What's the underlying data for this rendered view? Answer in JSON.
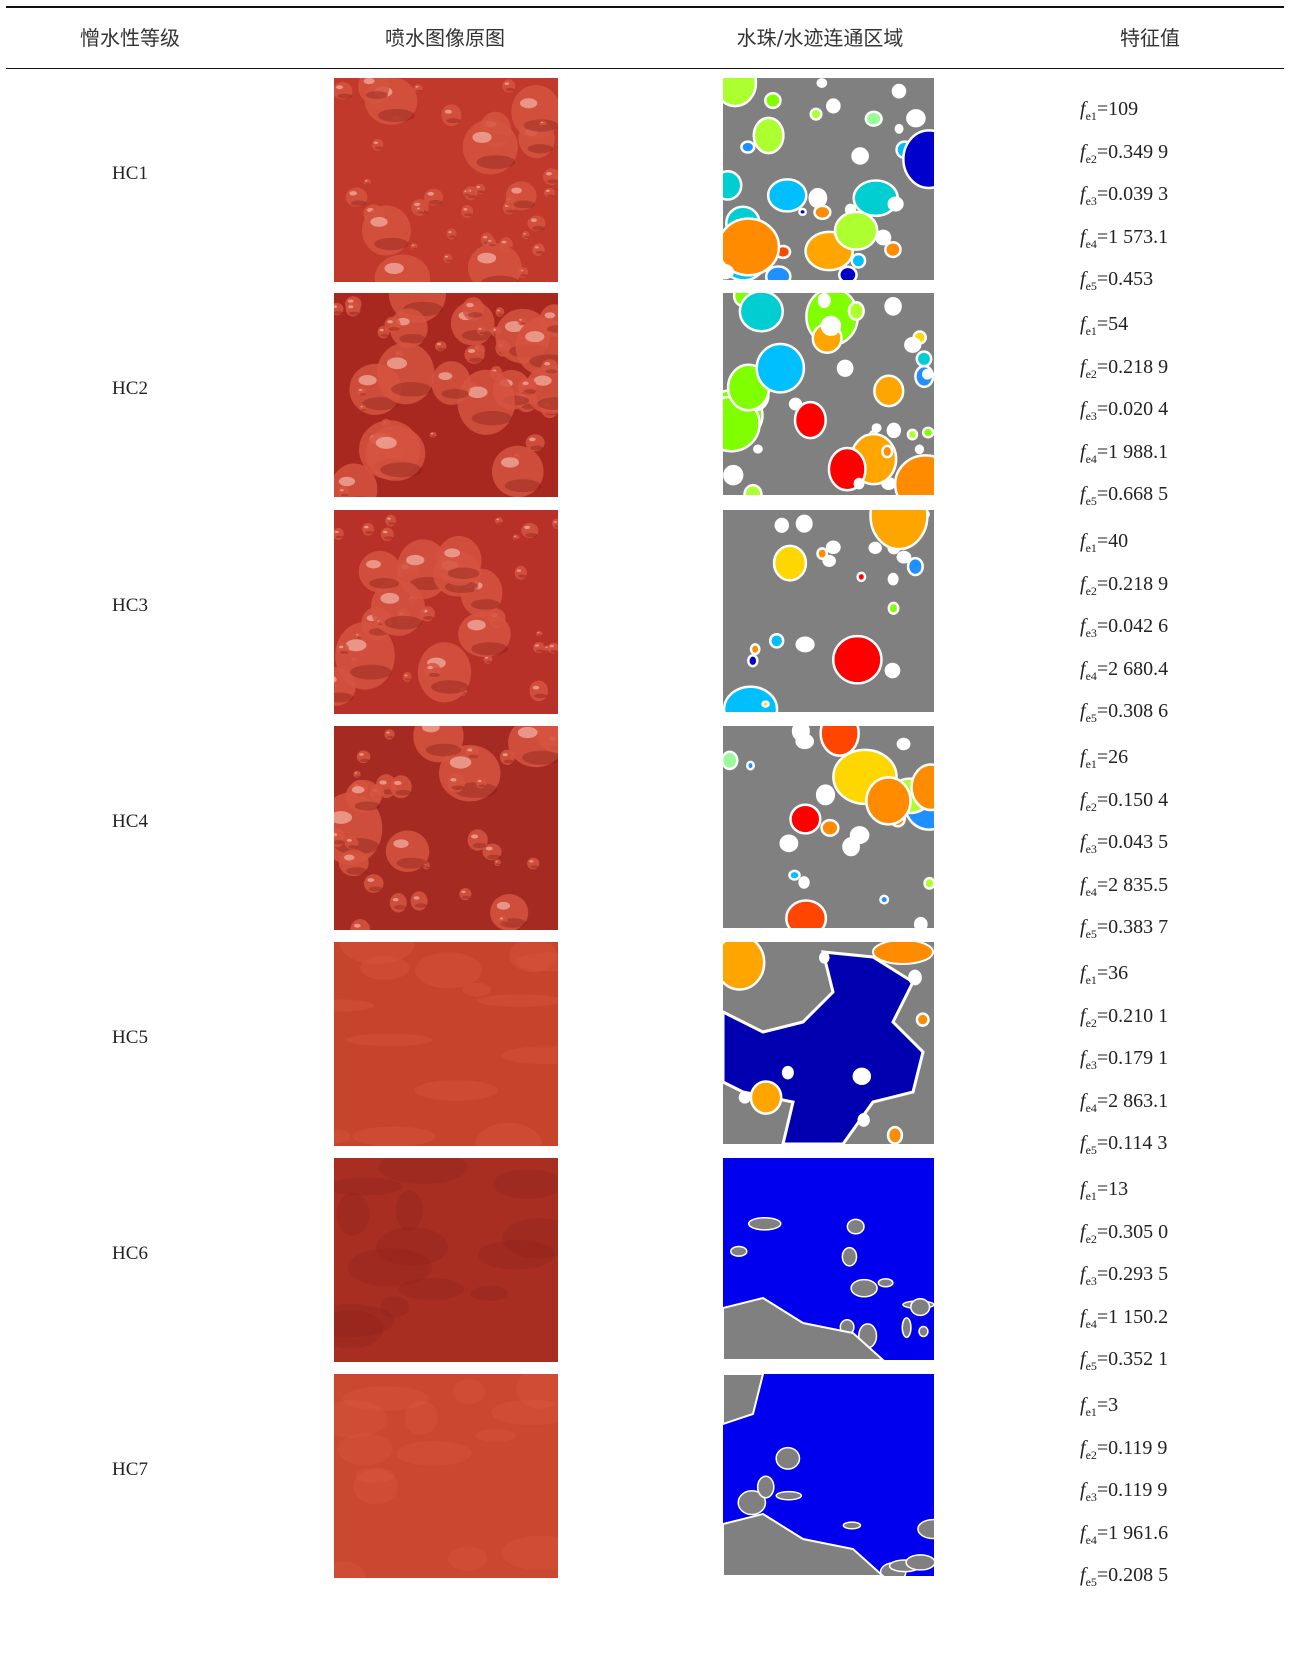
{
  "table": {
    "headers": [
      "憎水性等级",
      "喷水图像原图",
      "水珠/水迹连通区域",
      "特征值"
    ],
    "rows": [
      {
        "grade": "HC1",
        "features": [
          {
            "sub": "e1",
            "value": "=109"
          },
          {
            "sub": "e2",
            "value": "=0.349 9"
          },
          {
            "sub": "e3",
            "value": "=0.039 3"
          },
          {
            "sub": "e4",
            "value": "=1 573.1"
          },
          {
            "sub": "e5",
            "value": "=0.453"
          }
        ]
      },
      {
        "grade": "HC2",
        "features": [
          {
            "sub": "e1",
            "value": "=54"
          },
          {
            "sub": "e2",
            "value": "=0.218 9"
          },
          {
            "sub": "e3",
            "value": "=0.020 4"
          },
          {
            "sub": "e4",
            "value": "=1 988.1"
          },
          {
            "sub": "e5",
            "value": "=0.668 5"
          }
        ]
      },
      {
        "grade": "HC3",
        "features": [
          {
            "sub": "e1",
            "value": "=40"
          },
          {
            "sub": "e2",
            "value": "=0.218 9"
          },
          {
            "sub": "e3",
            "value": "=0.042 6"
          },
          {
            "sub": "e4",
            "value": "=2 680.4"
          },
          {
            "sub": "e5",
            "value": "=0.308 6"
          }
        ]
      },
      {
        "grade": "HC4",
        "features": [
          {
            "sub": "e1",
            "value": "=26"
          },
          {
            "sub": "e2",
            "value": "=0.150 4"
          },
          {
            "sub": "e3",
            "value": "=0.043 5"
          },
          {
            "sub": "e4",
            "value": "=2 835.5"
          },
          {
            "sub": "e5",
            "value": "=0.383 7"
          }
        ]
      },
      {
        "grade": "HC5",
        "features": [
          {
            "sub": "e1",
            "value": "=36"
          },
          {
            "sub": "e2",
            "value": "=0.210 1"
          },
          {
            "sub": "e3",
            "value": "=0.179 1"
          },
          {
            "sub": "e4",
            "value": "=2 863.1"
          },
          {
            "sub": "e5",
            "value": "=0.114 3"
          }
        ]
      },
      {
        "grade": "HC6",
        "features": [
          {
            "sub": "e1",
            "value": "=13"
          },
          {
            "sub": "e2",
            "value": "=0.305 0"
          },
          {
            "sub": "e3",
            "value": "=0.293 5"
          },
          {
            "sub": "e4",
            "value": "=1 150.2"
          },
          {
            "sub": "e5",
            "value": "=0.352 1"
          }
        ]
      },
      {
        "grade": "HC7",
        "features": [
          {
            "sub": "e1",
            "value": "=3"
          },
          {
            "sub": "e2",
            "value": "=0.119 9"
          },
          {
            "sub": "e3",
            "value": "=0.119 9"
          },
          {
            "sub": "e4",
            "value": "=1 961.6"
          },
          {
            "sub": "e5",
            "value": "=0.208 5"
          }
        ]
      }
    ]
  },
  "colors": {
    "surface_red": "#b8342a",
    "segment_background": "#808080",
    "water_region_blue": "#0000ee"
  }
}
